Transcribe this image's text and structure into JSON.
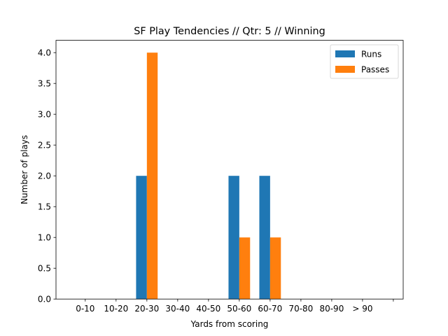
{
  "chart_data": {
    "type": "bar",
    "title": "SF Play Tendencies // Qtr: 5 // Winning",
    "xlabel": "Yards from scoring",
    "ylabel": "Number of plays",
    "categories": [
      "0-10",
      "10-20",
      "20-30",
      "30-40",
      "40-50",
      "50-60",
      "60-70",
      "70-80",
      "80-90",
      "> 90"
    ],
    "series": [
      {
        "name": "Runs",
        "color": "#1f77b4",
        "values": [
          0,
          0,
          2,
          0,
          0,
          2,
          2,
          0,
          0,
          0
        ]
      },
      {
        "name": "Passes",
        "color": "#ff7f0e",
        "values": [
          0,
          0,
          4,
          0,
          0,
          1,
          1,
          0,
          0,
          0
        ]
      }
    ],
    "ylim": [
      0,
      4.2
    ],
    "yticks": [
      "0.0",
      "0.5",
      "1.0",
      "1.5",
      "2.0",
      "2.5",
      "3.0",
      "3.5",
      "4.0"
    ],
    "grid": false,
    "legend": "upper-right"
  }
}
